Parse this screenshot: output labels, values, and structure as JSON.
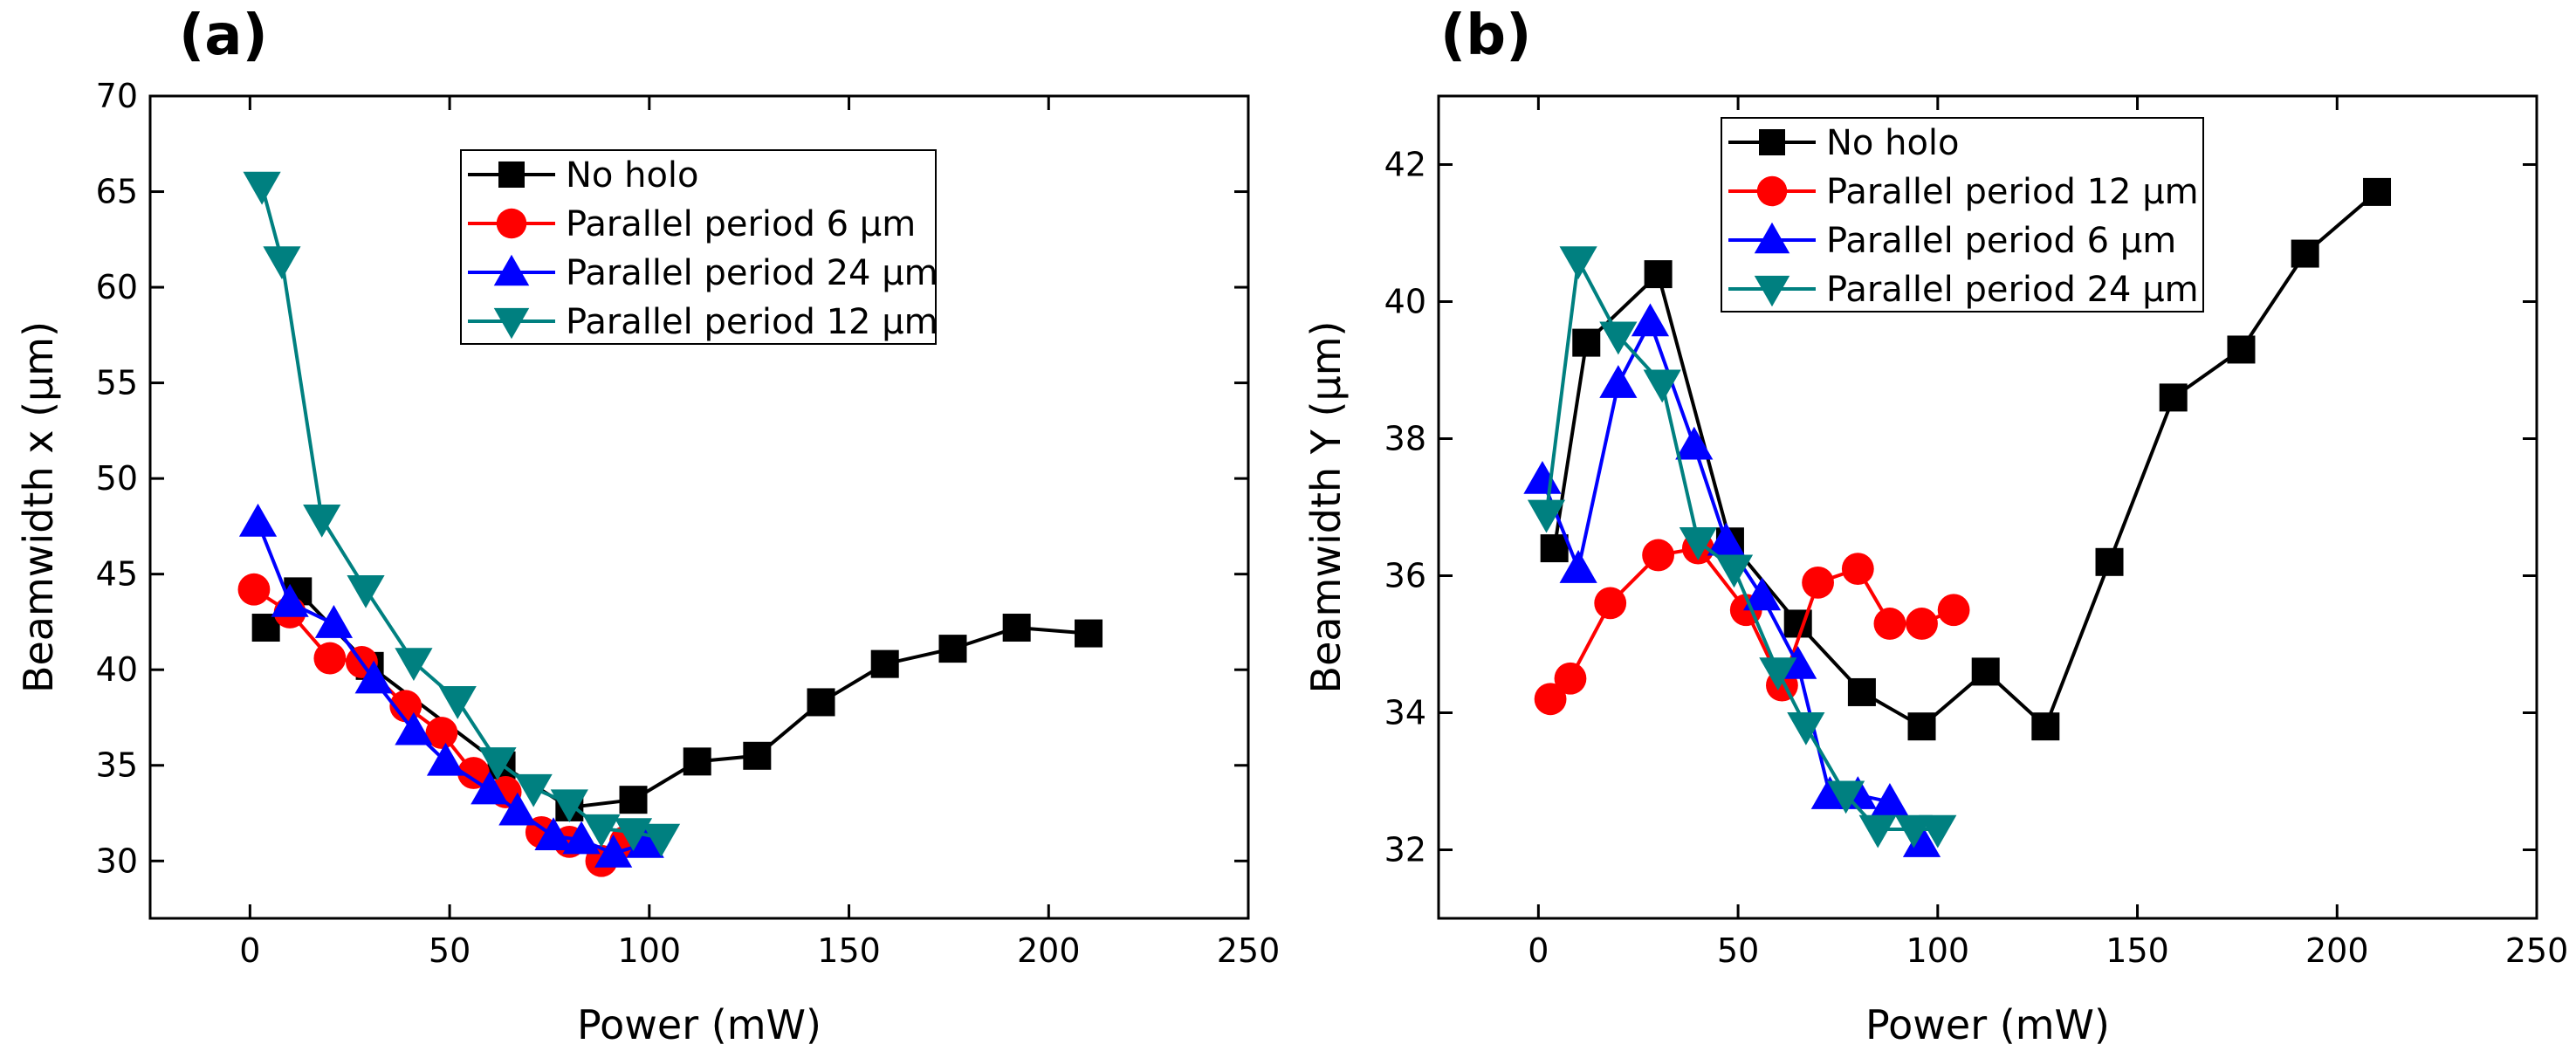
{
  "chart_data": [
    {
      "type": "line",
      "panel_label": "(a)",
      "xlabel": "Power (mW)",
      "ylabel": "Beamwidth x (μm)",
      "xlim": [
        -25,
        250
      ],
      "ylim": [
        27,
        70
      ],
      "xticks": [
        0,
        50,
        100,
        150,
        200,
        250
      ],
      "yticks": [
        30,
        35,
        40,
        45,
        50,
        55,
        60,
        65,
        70
      ],
      "legend_position": "upper-center",
      "series": [
        {
          "name": "No holo",
          "color": "#000000",
          "marker": "square",
          "x": [
            4,
            12,
            30,
            63,
            80,
            96,
            112,
            127,
            143,
            159,
            176,
            192,
            210
          ],
          "y": [
            42.2,
            44.1,
            40.2,
            35.0,
            32.8,
            33.2,
            35.2,
            35.5,
            38.3,
            40.3,
            41.1,
            42.2,
            41.9
          ]
        },
        {
          "name": "Parallel period 6 μm",
          "color": "#ff0000",
          "marker": "circle",
          "x": [
            1,
            10,
            20,
            28,
            39,
            48,
            56,
            64,
            73,
            80,
            88,
            94
          ],
          "y": [
            44.2,
            43.0,
            40.6,
            40.4,
            38.1,
            36.7,
            34.6,
            33.6,
            31.5,
            31.0,
            30.0,
            31.0
          ]
        },
        {
          "name": "Parallel period 24 μm",
          "color": "#0000ff",
          "marker": "triangle-up",
          "x": [
            2,
            10,
            21,
            31,
            41,
            49,
            60,
            67,
            76,
            83,
            91,
            99
          ],
          "y": [
            47.7,
            43.5,
            42.4,
            39.5,
            36.8,
            35.2,
            33.7,
            32.6,
            31.3,
            31.1,
            30.4,
            30.9
          ]
        },
        {
          "name": "Parallel period 12 μm",
          "color": "#008080",
          "marker": "triangle-down",
          "x": [
            3,
            8,
            18,
            29,
            41,
            52,
            62,
            71,
            80,
            88,
            96,
            103
          ],
          "y": [
            65.3,
            61.4,
            47.9,
            44.2,
            40.4,
            38.4,
            35.2,
            33.8,
            33.0,
            31.7,
            31.5,
            31.2
          ]
        }
      ]
    },
    {
      "type": "line",
      "panel_label": "(b)",
      "xlabel": "Power (mW)",
      "ylabel": "Beamwidth Y (μm)",
      "xlim": [
        -25,
        250
      ],
      "ylim": [
        31,
        43
      ],
      "xticks": [
        0,
        50,
        100,
        150,
        200,
        250
      ],
      "yticks": [
        32,
        34,
        36,
        38,
        40,
        42
      ],
      "legend_position": "upper-left",
      "series": [
        {
          "name": "No holo",
          "color": "#000000",
          "marker": "square",
          "x": [
            4,
            12,
            30,
            48,
            65,
            81,
            96,
            112,
            127,
            143,
            159,
            176,
            192,
            210
          ],
          "y": [
            36.4,
            39.4,
            40.4,
            36.5,
            35.3,
            34.3,
            33.8,
            34.6,
            33.8,
            36.2,
            38.6,
            39.3,
            40.7,
            41.6
          ]
        },
        {
          "name": "Parallel period 12 μm",
          "color": "#ff0000",
          "marker": "circle",
          "x": [
            3,
            8,
            18,
            30,
            40,
            52,
            61,
            70,
            80,
            88,
            96,
            104
          ],
          "y": [
            34.2,
            34.5,
            35.6,
            36.3,
            36.4,
            35.5,
            34.4,
            35.9,
            36.1,
            35.3,
            35.3,
            35.5
          ]
        },
        {
          "name": "Parallel period 6 μm",
          "color": "#0000ff",
          "marker": "triangle-up",
          "x": [
            1,
            10,
            20,
            28,
            39,
            47,
            56,
            65,
            73,
            80,
            88,
            96
          ],
          "y": [
            37.4,
            36.1,
            38.8,
            39.7,
            37.9,
            36.5,
            35.7,
            34.7,
            32.8,
            32.8,
            32.7,
            32.1
          ]
        },
        {
          "name": "Parallel period 24 μm",
          "color": "#008080",
          "marker": "triangle-down",
          "x": [
            2,
            10,
            20,
            31,
            40,
            49,
            60,
            67,
            77,
            85,
            94,
            100
          ],
          "y": [
            36.9,
            40.6,
            39.5,
            38.8,
            36.5,
            36.1,
            34.6,
            33.8,
            32.8,
            32.3,
            32.3,
            32.3
          ]
        }
      ]
    }
  ]
}
